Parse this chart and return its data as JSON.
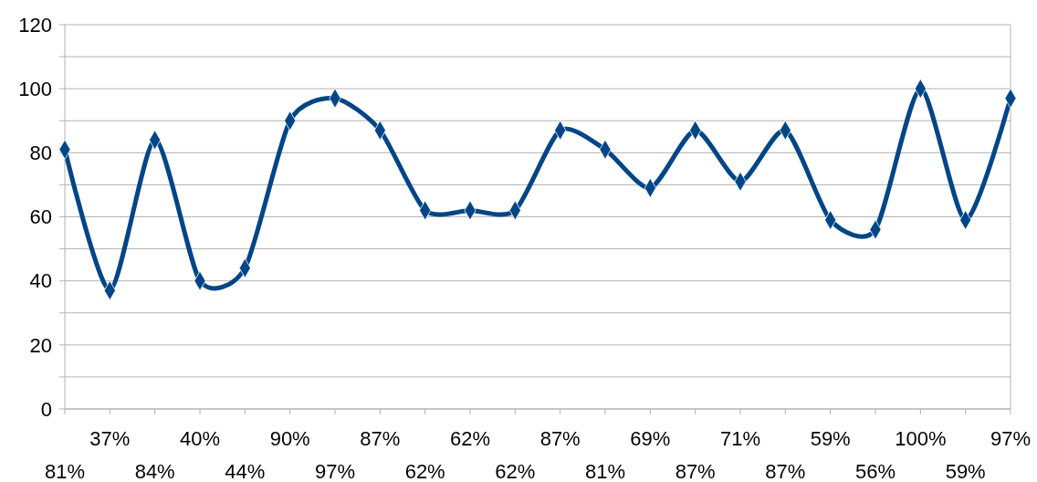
{
  "chart_data": {
    "type": "line",
    "categories": [
      "81%",
      "37%",
      "84%",
      "40%",
      "44%",
      "90%",
      "97%",
      "87%",
      "62%",
      "62%",
      "62%",
      "87%",
      "81%",
      "69%",
      "87%",
      "71%",
      "87%",
      "59%",
      "56%",
      "100%",
      "59%",
      "97%"
    ],
    "series": [
      {
        "color": "#004586",
        "values": [
          81,
          37,
          84,
          40,
          44,
          90,
          97,
          87,
          62,
          62,
          62,
          87,
          81,
          69,
          87,
          71,
          87,
          59,
          56,
          100,
          59,
          97
        ]
      }
    ],
    "ylim": [
      0,
      120
    ],
    "yticks": [
      0,
      {
        "value": 10,
        "label": null
      },
      20,
      {
        "value": 30,
        "label": null
      },
      40,
      {
        "value": 50,
        "label": null
      },
      60,
      {
        "value": 70,
        "label": null
      },
      80,
      {
        "value": 90,
        "label": null
      },
      100,
      {
        "value": 110,
        "label": null
      },
      120
    ],
    "grid": "y",
    "marker": "diamond",
    "line_style": "solid"
  }
}
